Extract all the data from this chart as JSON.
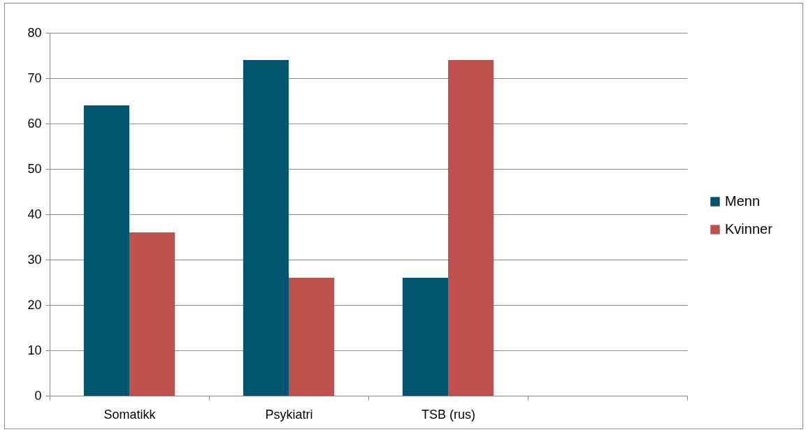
{
  "chart_data": {
    "type": "bar",
    "categories": [
      "Somatikk",
      "Psykiatri",
      "TSB (rus)",
      null
    ],
    "series": [
      {
        "name": "Menn",
        "color": "#00546e",
        "values": [
          64,
          74,
          26,
          null
        ]
      },
      {
        "name": "Kvinner",
        "color": "#c0504d",
        "values": [
          36,
          26,
          74,
          null
        ]
      }
    ],
    "ylim": [
      0,
      80
    ],
    "yticks": [
      0,
      10,
      20,
      30,
      40,
      50,
      60,
      70,
      80
    ],
    "grid": "y",
    "legend": "right"
  }
}
